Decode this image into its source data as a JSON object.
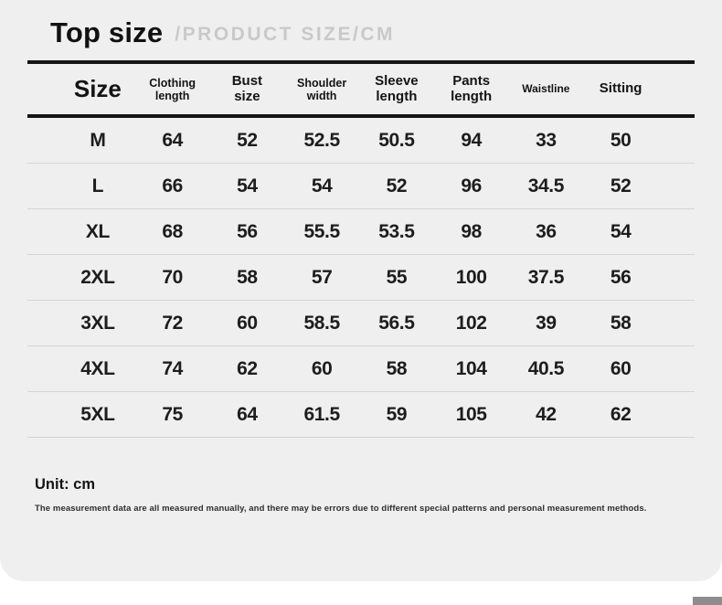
{
  "header": {
    "title": "Top size",
    "subtitle": "/PRODUCT SIZE/CM"
  },
  "table": {
    "columns_display": [
      "Size",
      "Clothing\nlength",
      "Bust\nsize",
      "Shoulder\nwidth",
      "Sleeve\nlength",
      "Pants\nlength",
      "Waistline",
      "Sitting"
    ]
  },
  "chart_data": {
    "type": "table",
    "title": "Top size /PRODUCT SIZE/CM",
    "unit": "cm",
    "columns": [
      "Size",
      "Clothing length",
      "Bust size",
      "Shoulder width",
      "Sleeve length",
      "Pants length",
      "Waistline",
      "Sitting"
    ],
    "rows": [
      [
        "M",
        "64",
        "52",
        "52.5",
        "50.5",
        "94",
        "33",
        "50"
      ],
      [
        "L",
        "66",
        "54",
        "54",
        "52",
        "96",
        "34.5",
        "52"
      ],
      [
        "XL",
        "68",
        "56",
        "55.5",
        "53.5",
        "98",
        "36",
        "54"
      ],
      [
        "2XL",
        "70",
        "58",
        "57",
        "55",
        "100",
        "37.5",
        "56"
      ],
      [
        "3XL",
        "72",
        "60",
        "58.5",
        "56.5",
        "102",
        "39",
        "58"
      ],
      [
        "4XL",
        "74",
        "62",
        "60",
        "58",
        "104",
        "40.5",
        "60"
      ],
      [
        "5XL",
        "75",
        "64",
        "61.5",
        "59",
        "105",
        "42",
        "62"
      ]
    ]
  },
  "footer": {
    "unit_label": "Unit: cm",
    "disclaimer": "The measurement data are all measured manually, and there may be errors due to different special patterns and personal measurement methods."
  },
  "colors": {
    "card_background": "#efefef",
    "rule_black": "#141414",
    "rule_gray": "#d5d5d4",
    "subtitle_gray": "#c9c9c9",
    "corner_box_gray": "#8d8d8d"
  }
}
